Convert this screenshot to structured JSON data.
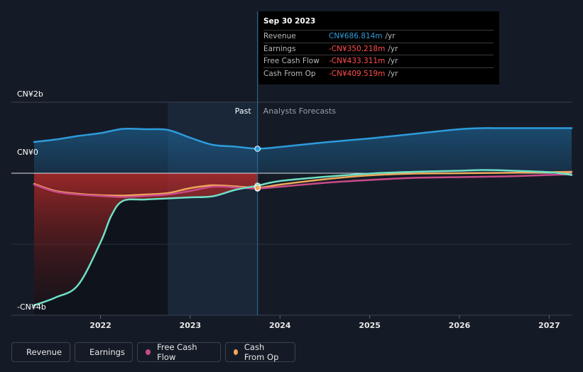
{
  "chart_data": {
    "type": "line",
    "y_labels": [
      "CN¥2b",
      "CN¥0",
      "-CN¥4b"
    ],
    "x_ticks": [
      "2022",
      "2023",
      "2024",
      "2025",
      "2026",
      "2027"
    ],
    "ylim": [
      -4,
      2
    ],
    "xlim": [
      2021.26,
      2027.25
    ],
    "past_label": "Past",
    "forecast_label": "Analysts Forecasts",
    "tooltip": {
      "date": "Sep 30 2023",
      "unit": "/yr",
      "rows": [
        {
          "label": "Revenue",
          "value": "CN¥686.814m",
          "color": "#2d9cdb"
        },
        {
          "label": "Earnings",
          "value": "-CN¥350.218m",
          "color": "#ff4d4d"
        },
        {
          "label": "Free Cash Flow",
          "value": "-CN¥433.311m",
          "color": "#ff4d4d"
        },
        {
          "label": "Cash From Op",
          "value": "-CN¥409.519m",
          "color": "#ff4d4d"
        }
      ]
    },
    "divider_x": 2023.75,
    "shade_start_x": 2022.75,
    "series": [
      {
        "name": "Revenue",
        "color": "#2d9cdb",
        "x": [
          2021.26,
          2021.5,
          2021.75,
          2022.0,
          2022.25,
          2022.5,
          2022.75,
          2023.0,
          2023.25,
          2023.5,
          2023.75,
          2024.0,
          2024.5,
          2025.0,
          2025.5,
          2026.0,
          2026.25,
          2026.5,
          2027.0,
          2027.25
        ],
        "values": [
          0.88,
          0.95,
          1.05,
          1.13,
          1.25,
          1.24,
          1.22,
          1.0,
          0.8,
          0.75,
          0.69,
          0.74,
          0.87,
          0.98,
          1.11,
          1.24,
          1.27,
          1.27,
          1.27,
          1.27
        ]
      },
      {
        "name": "Earnings",
        "color": "#6fe0c5",
        "x": [
          2021.26,
          2021.5,
          2021.75,
          2022.0,
          2022.12,
          2022.25,
          2022.5,
          2022.75,
          2023.0,
          2023.25,
          2023.5,
          2023.75,
          2024.0,
          2024.5,
          2025.0,
          2025.5,
          2026.0,
          2026.25,
          2026.5,
          2027.0,
          2027.25
        ],
        "values": [
          -3.72,
          -3.5,
          -3.15,
          -1.95,
          -1.2,
          -0.78,
          -0.74,
          -0.71,
          -0.68,
          -0.65,
          -0.47,
          -0.35,
          -0.22,
          -0.1,
          -0.01,
          0.04,
          0.07,
          0.09,
          0.08,
          0.03,
          -0.05
        ]
      },
      {
        "name": "Free Cash Flow",
        "color": "#c94a8a",
        "x": [
          2021.26,
          2021.5,
          2021.75,
          2022.0,
          2022.25,
          2022.5,
          2022.75,
          2023.0,
          2023.25,
          2023.5,
          2023.75,
          2024.0,
          2024.5,
          2025.0,
          2025.5,
          2026.0,
          2026.5,
          2027.0,
          2027.25
        ],
        "values": [
          -0.32,
          -0.52,
          -0.6,
          -0.64,
          -0.67,
          -0.64,
          -0.6,
          -0.5,
          -0.38,
          -0.4,
          -0.43,
          -0.38,
          -0.27,
          -0.19,
          -0.13,
          -0.11,
          -0.09,
          -0.05,
          -0.03
        ]
      },
      {
        "name": "Cash From Op",
        "color": "#f0a85a",
        "x": [
          2021.26,
          2021.5,
          2021.75,
          2022.0,
          2022.25,
          2022.5,
          2022.75,
          2023.0,
          2023.25,
          2023.5,
          2023.75,
          2024.0,
          2024.5,
          2025.0,
          2025.5,
          2026.0,
          2026.5,
          2027.0,
          2027.25
        ],
        "values": [
          -0.3,
          -0.5,
          -0.58,
          -0.62,
          -0.63,
          -0.6,
          -0.56,
          -0.42,
          -0.34,
          -0.37,
          -0.41,
          -0.32,
          -0.17,
          -0.06,
          -0.01,
          0.0,
          0.01,
          0.03,
          0.04
        ]
      }
    ]
  },
  "legend": [
    {
      "label": "Revenue",
      "color": "#2d9cdb"
    },
    {
      "label": "Earnings",
      "color": "#6fe0c5"
    },
    {
      "label": "Free Cash Flow",
      "color": "#c94a8a"
    },
    {
      "label": "Cash From Op",
      "color": "#f0a85a"
    }
  ]
}
